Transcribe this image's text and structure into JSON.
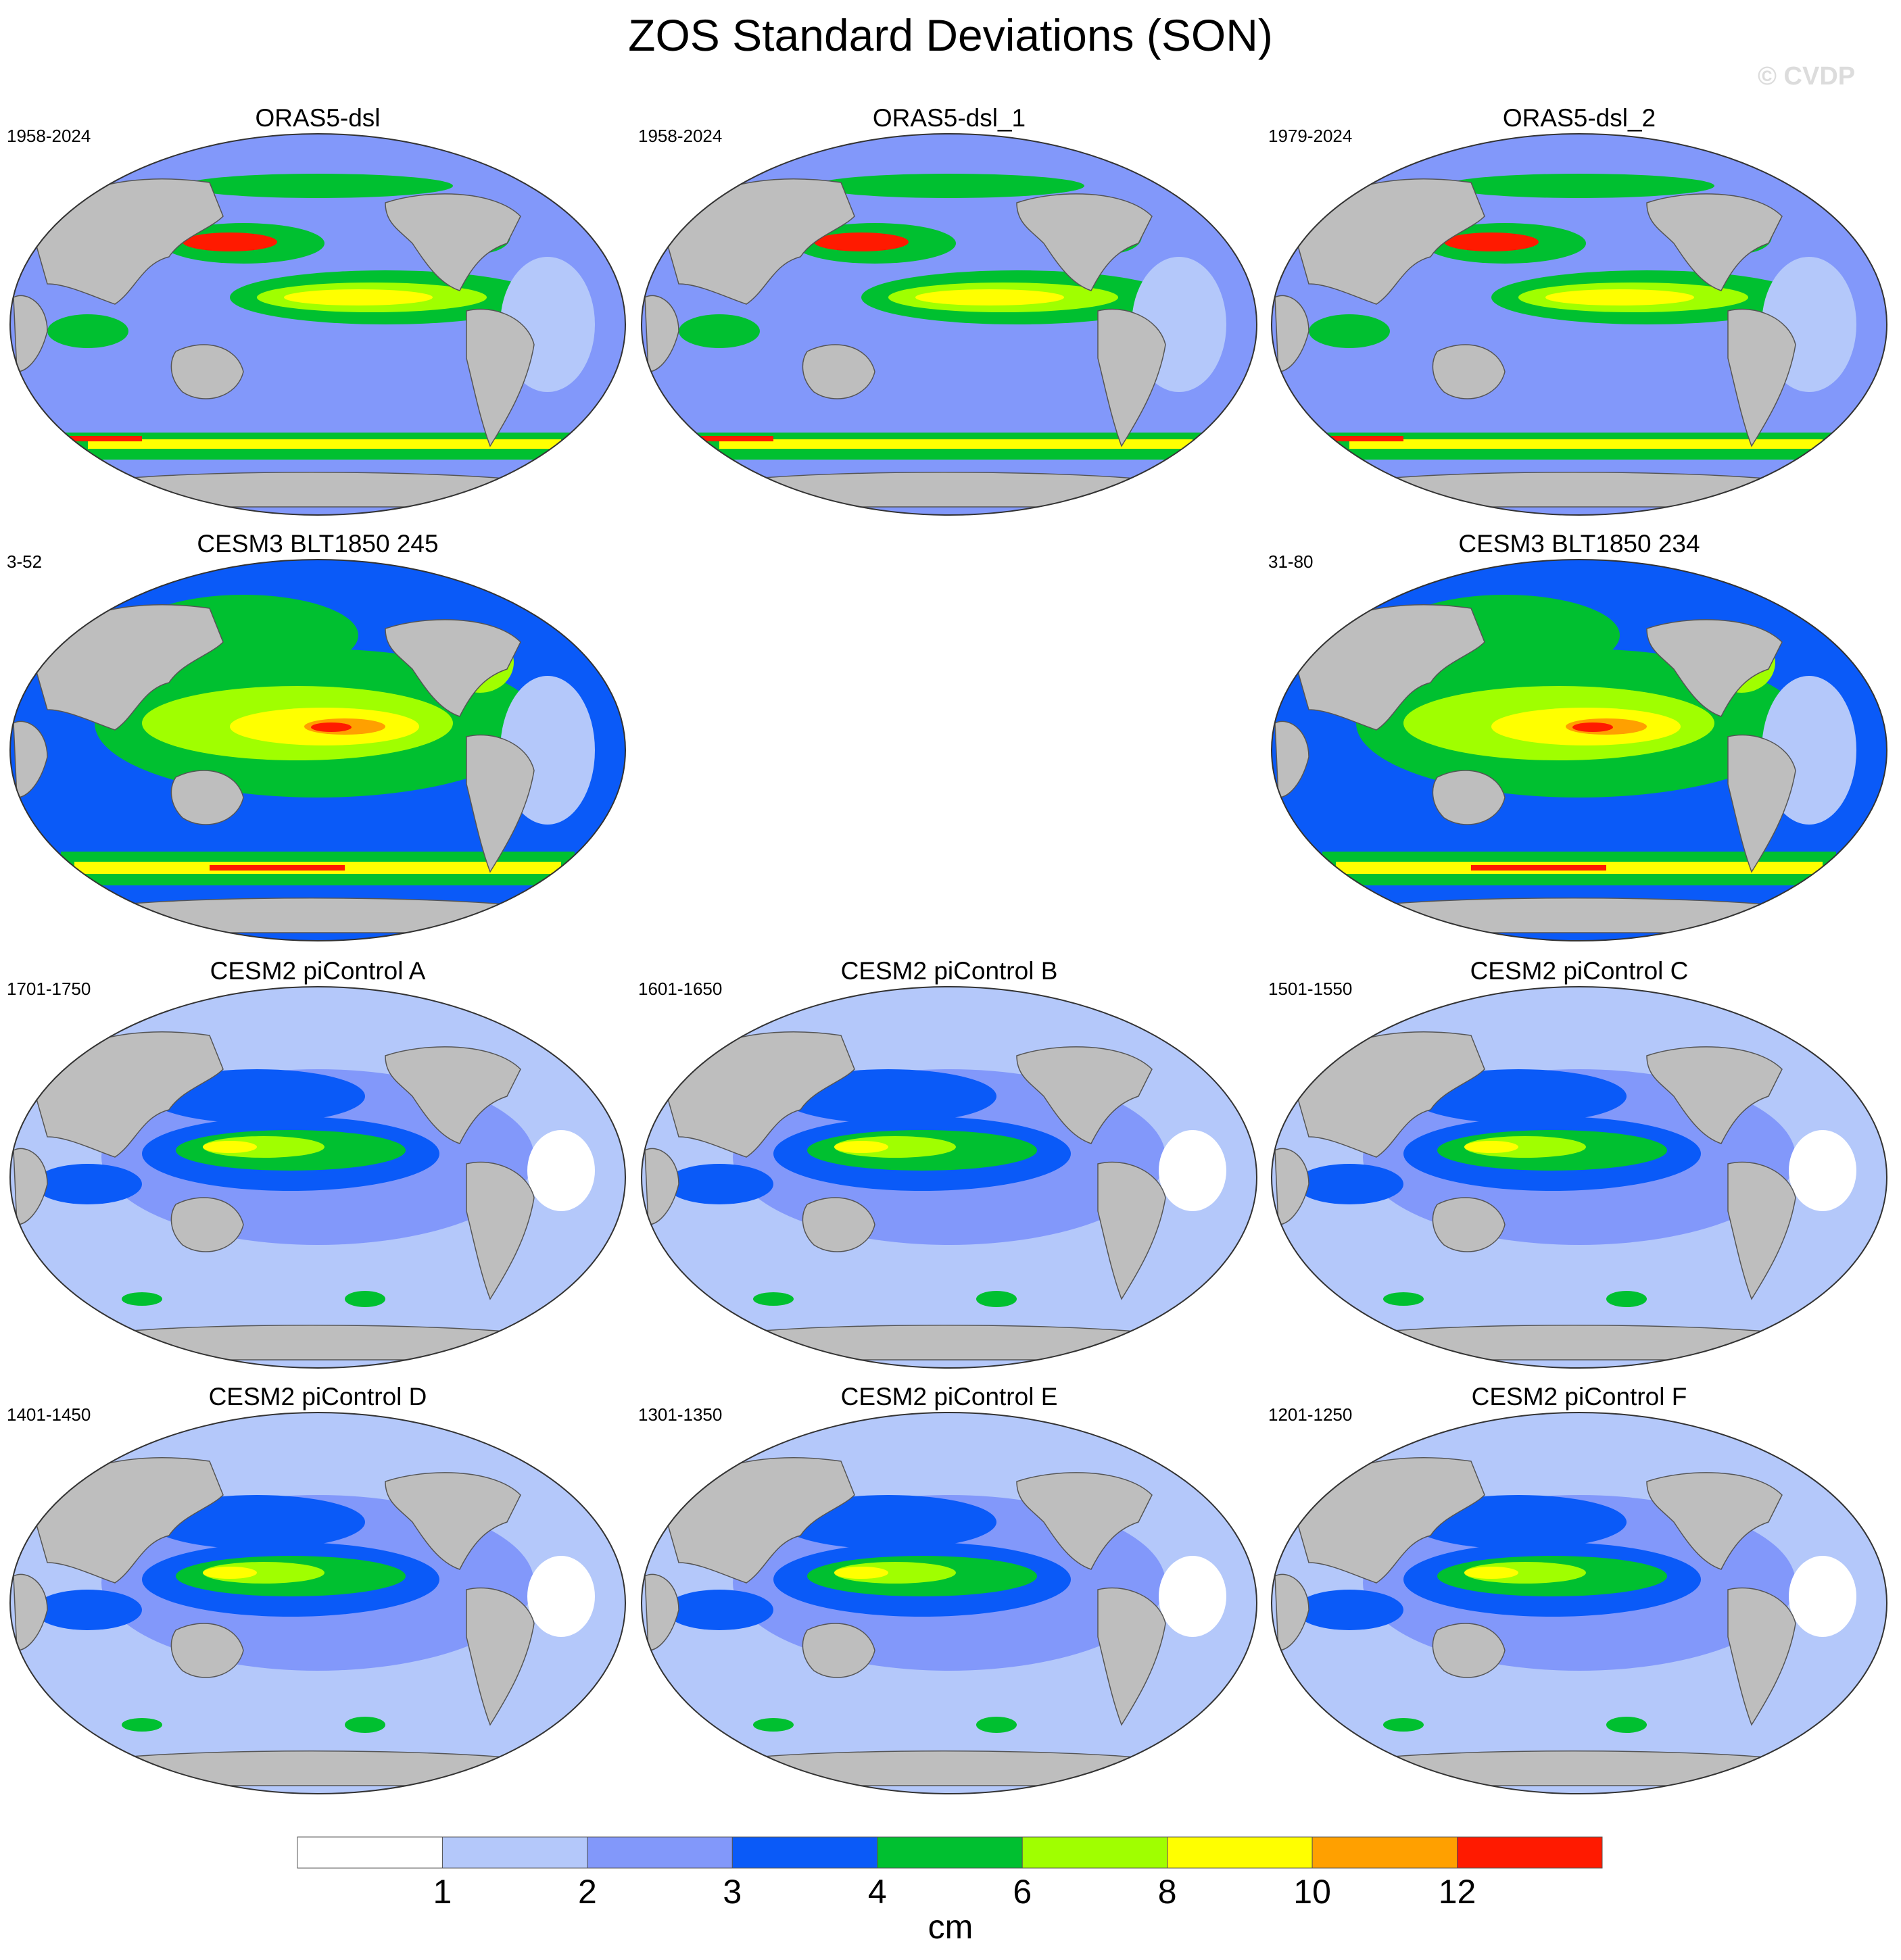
{
  "title": "ZOS Standard Deviations (SON)",
  "watermark": "© CVDP",
  "panels": [
    {
      "title": "ORAS5-dsl",
      "period": "1958-2024",
      "dataset": "obs"
    },
    {
      "title": "ORAS5-dsl_1",
      "period": "1958-2024",
      "dataset": "obs"
    },
    {
      "title": "ORAS5-dsl_2",
      "period": "1979-2024",
      "dataset": "obs"
    },
    {
      "title": "CESM3 BLT1850 245",
      "period": "3-52",
      "dataset": "cesm3"
    },
    {
      "title": "CESM3 BLT1850 234",
      "period": "31-80",
      "dataset": "cesm3"
    },
    {
      "title": "CESM2 piControl A",
      "period": "1701-1750",
      "dataset": "cesm2"
    },
    {
      "title": "CESM2 piControl B",
      "period": "1601-1650",
      "dataset": "cesm2"
    },
    {
      "title": "CESM2 piControl C",
      "period": "1501-1550",
      "dataset": "cesm2"
    },
    {
      "title": "CESM2 piControl D",
      "period": "1401-1450",
      "dataset": "cesm2"
    },
    {
      "title": "CESM2 piControl E",
      "period": "1301-1350",
      "dataset": "cesm2"
    },
    {
      "title": "CESM2 piControl F",
      "period": "1201-1250",
      "dataset": "cesm2"
    }
  ],
  "colorbar": {
    "units": "cm",
    "labels": [
      "1",
      "2",
      "3",
      "4",
      "6",
      "8",
      "10",
      "12"
    ],
    "colors": [
      "#ffffff",
      "#b4c8fa",
      "#8298fa",
      "#0a5af8",
      "#00c030",
      "#a0ff00",
      "#ffff00",
      "#ffa000",
      "#ff1a00"
    ]
  },
  "map_colors": {
    "land": "#bebebe",
    "outline": "#333333"
  }
}
